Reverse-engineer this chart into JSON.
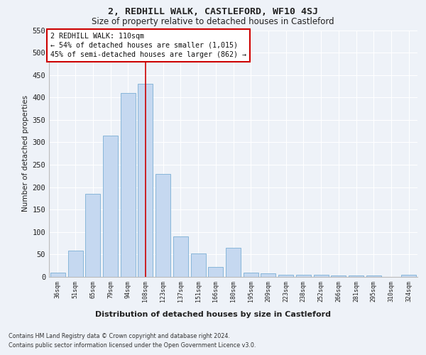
{
  "title": "2, REDHILL WALK, CASTLEFORD, WF10 4SJ",
  "subtitle": "Size of property relative to detached houses in Castleford",
  "xlabel": "Distribution of detached houses by size in Castleford",
  "ylabel": "Number of detached properties",
  "categories": [
    "36sqm",
    "51sqm",
    "65sqm",
    "79sqm",
    "94sqm",
    "108sqm",
    "123sqm",
    "137sqm",
    "151sqm",
    "166sqm",
    "180sqm",
    "195sqm",
    "209sqm",
    "223sqm",
    "238sqm",
    "252sqm",
    "266sqm",
    "281sqm",
    "295sqm",
    "310sqm",
    "324sqm"
  ],
  "values": [
    10,
    58,
    185,
    315,
    410,
    430,
    230,
    90,
    52,
    22,
    65,
    10,
    8,
    5,
    5,
    5,
    3,
    3,
    3,
    0,
    5
  ],
  "bar_color": "#c5d8f0",
  "bar_edge_color": "#7bafd4",
  "highlight_color": "#cc0000",
  "highlight_bar_index": 5,
  "annotation_line1": "2 REDHILL WALK: 110sqm",
  "annotation_line2": "← 54% of detached houses are smaller (1,015)",
  "annotation_line3": "45% of semi-detached houses are larger (862) →",
  "ylim": [
    0,
    550
  ],
  "yticks": [
    0,
    50,
    100,
    150,
    200,
    250,
    300,
    350,
    400,
    450,
    500,
    550
  ],
  "footer_line1": "Contains HM Land Registry data © Crown copyright and database right 2024.",
  "footer_line2": "Contains public sector information licensed under the Open Government Licence v3.0.",
  "bg_color": "#eef2f8",
  "plot_bg_color": "#eef2f8",
  "grid_color": "#ffffff"
}
